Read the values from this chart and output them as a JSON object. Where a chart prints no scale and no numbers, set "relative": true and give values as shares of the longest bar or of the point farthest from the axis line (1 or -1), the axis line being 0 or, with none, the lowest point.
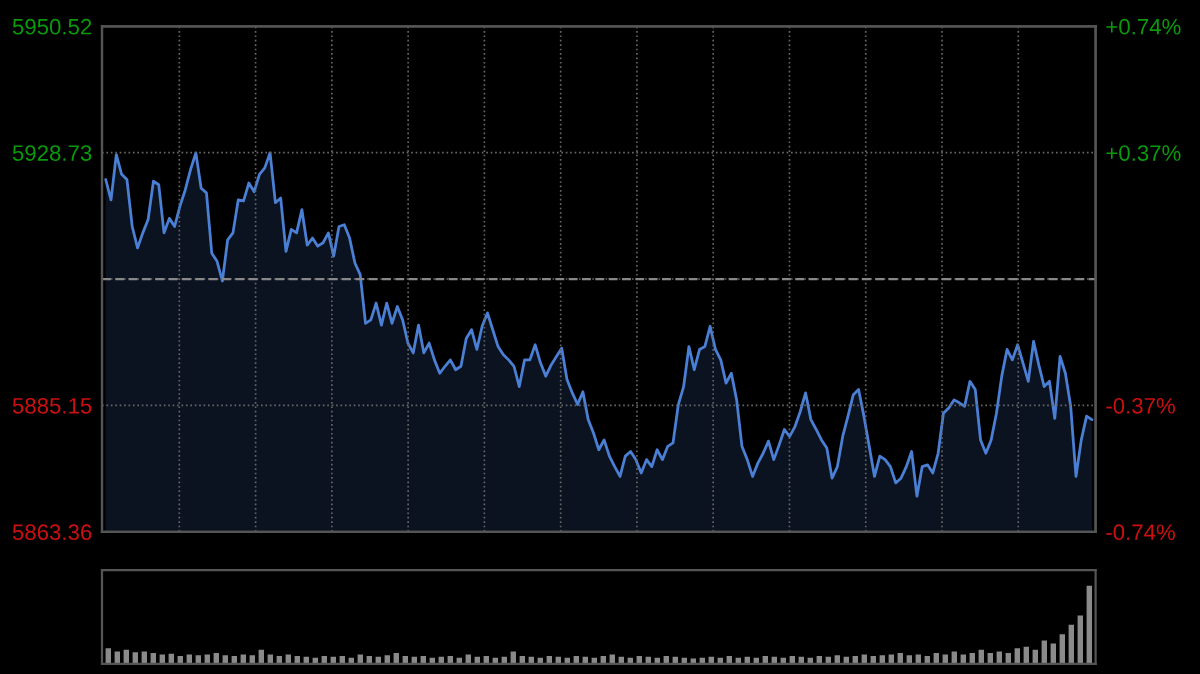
{
  "chart_data": [
    {
      "type": "area",
      "categories": [
        null,
        null,
        null,
        null,
        null,
        null,
        null,
        null,
        null,
        null,
        null,
        null,
        null,
        null,
        null,
        null,
        null,
        null,
        null,
        null,
        null,
        null,
        null,
        null,
        null,
        null,
        null,
        null,
        null,
        null,
        null,
        null,
        null,
        null,
        null,
        null,
        null,
        null,
        null,
        null,
        null,
        null,
        null,
        null,
        null,
        null,
        null,
        null,
        null,
        null,
        null,
        null,
        null,
        null,
        null,
        null,
        null,
        null,
        null,
        null,
        null,
        null,
        null,
        null,
        null,
        null,
        null,
        null,
        null,
        null,
        null,
        null,
        null,
        null,
        null,
        null,
        null,
        null,
        null,
        null,
        null,
        null,
        null,
        null,
        null,
        null,
        null,
        null,
        null,
        null,
        null,
        null,
        null,
        null,
        null,
        null,
        null,
        null,
        null,
        null,
        null,
        null,
        null,
        null,
        null,
        null,
        null,
        null,
        null,
        null,
        null,
        null,
        null,
        null,
        null,
        null,
        null,
        null,
        null,
        null,
        null,
        null,
        null,
        null,
        null,
        null,
        null,
        null,
        null,
        null,
        null,
        null,
        null,
        null,
        null,
        null,
        null,
        null,
        null,
        null,
        null,
        null,
        null,
        null,
        null,
        null,
        null,
        null,
        null,
        null,
        null,
        null,
        null,
        null,
        null,
        null,
        null,
        null,
        null,
        null,
        null,
        null,
        null,
        null,
        null,
        null,
        null,
        null,
        null,
        null,
        null,
        null,
        null,
        null,
        null,
        null,
        null,
        null,
        null,
        null,
        null,
        null,
        null,
        null,
        null,
        null,
        null
      ],
      "series": [
        {
          "color": "#4a7fd4",
          "values": [
            5924.1,
            5920.6,
            5928.4,
            5925.0,
            5924.1,
            5916.0,
            5912.3,
            5914.9,
            5917.2,
            5923.8,
            5923.2,
            5914.9,
            5917.4,
            5916.0,
            5919.5,
            5922.3,
            5925.8,
            5928.7,
            5922.6,
            5921.8,
            5911.4,
            5910.0,
            5906.6,
            5913.7,
            5914.9,
            5920.6,
            5920.4,
            5923.5,
            5922.0,
            5925.0,
            5926.1,
            5928.7,
            5920.1,
            5920.9,
            5911.7,
            5915.5,
            5914.9,
            5918.9,
            5912.8,
            5914.0,
            5912.6,
            5913.2,
            5914.9,
            5910.9,
            5916.0,
            5916.3,
            5914.0,
            5909.7,
            5907.7,
            5899.3,
            5899.9,
            5902.8,
            5899.0,
            5902.8,
            5899.3,
            5902.2,
            5899.9,
            5895.9,
            5894.2,
            5899.0,
            5894.2,
            5895.9,
            5893.0,
            5890.7,
            5891.9,
            5893.0,
            5891.3,
            5891.9,
            5896.7,
            5898.2,
            5894.8,
            5898.8,
            5901.1,
            5898.2,
            5895.3,
            5893.9,
            5893.0,
            5891.9,
            5888.4,
            5893.0,
            5893.0,
            5895.6,
            5892.5,
            5890.2,
            5892.1,
            5893.6,
            5895.0,
            5889.6,
            5887.3,
            5885.3,
            5887.5,
            5882.7,
            5880.4,
            5877.5,
            5879.2,
            5876.4,
            5874.6,
            5872.9,
            5876.4,
            5877.2,
            5875.8,
            5873.5,
            5875.8,
            5874.6,
            5877.5,
            5875.8,
            5878.1,
            5878.7,
            5885.3,
            5888.4,
            5895.3,
            5891.3,
            5894.8,
            5895.3,
            5898.8,
            5894.8,
            5893.0,
            5889.0,
            5890.7,
            5886.1,
            5878.1,
            5875.8,
            5872.9,
            5875.2,
            5876.9,
            5879.0,
            5875.8,
            5878.3,
            5881.0,
            5879.8,
            5881.5,
            5884.1,
            5887.3,
            5882.7,
            5881.0,
            5879.2,
            5877.8,
            5872.6,
            5874.6,
            5879.8,
            5883.3,
            5887.0,
            5887.9,
            5883.3,
            5878.1,
            5872.9,
            5876.4,
            5875.8,
            5874.6,
            5871.8,
            5872.6,
            5874.6,
            5877.2,
            5869.5,
            5874.6,
            5874.9,
            5873.5,
            5876.9,
            5883.8,
            5884.7,
            5886.1,
            5885.6,
            5885.0,
            5889.3,
            5887.9,
            5879.2,
            5876.9,
            5879.2,
            5883.8,
            5890.2,
            5894.8,
            5893.0,
            5895.6,
            5892.5,
            5889.3,
            5896.2,
            5892.1,
            5888.4,
            5889.3,
            5882.9,
            5893.6,
            5890.7,
            5885.0,
            5872.9,
            5879.2,
            5883.3,
            5882.7
          ]
        }
      ],
      "ylim": [
        5863.36,
        5950.52
      ],
      "yticks": [
        5863.36,
        5885.15,
        {
          "value": 5906.94,
          "label": null
        },
        5928.73,
        5950.52
      ],
      "y2lim": [
        -0.74,
        0.74
      ],
      "y2ticks": [
        {
          "value": -0.74,
          "label": "-0.74%"
        },
        {
          "value": -0.37,
          "label": "-0.37%"
        },
        {
          "value": 0,
          "label": null
        },
        {
          "value": 0.37,
          "label": "+0.37%"
        },
        {
          "value": 0.74,
          "label": "+0.74%"
        }
      ],
      "ref_lines": [
        {
          "axis": "y",
          "value": 5906.94,
          "line_style": "dashed",
          "color": "#888888"
        }
      ],
      "grid": true,
      "tick_labels": "y"
    },
    {
      "type": "bar",
      "relative": true,
      "color": "#8a8a8a",
      "categories": [
        null,
        null,
        null,
        null,
        null,
        null,
        null,
        null,
        null,
        null,
        null,
        null,
        null,
        null,
        null,
        null,
        null,
        null,
        null,
        null,
        null,
        null,
        null,
        null,
        null,
        null,
        null,
        null,
        null,
        null,
        null,
        null,
        null,
        null,
        null,
        null,
        null,
        null,
        null,
        null,
        null,
        null,
        null,
        null,
        null,
        null,
        null,
        null,
        null,
        null,
        null,
        null,
        null,
        null,
        null,
        null,
        null,
        null,
        null,
        null,
        null,
        null,
        null,
        null,
        null,
        null,
        null,
        null,
        null,
        null,
        null,
        null,
        null,
        null,
        null,
        null,
        null,
        null,
        null,
        null,
        null,
        null,
        null,
        null,
        null,
        null,
        null,
        null,
        null,
        null,
        null,
        null,
        null,
        null,
        null,
        null,
        null,
        null,
        null,
        null,
        null,
        null,
        null,
        null,
        null,
        null,
        null,
        null,
        null,
        null
      ],
      "values": [
        0.2,
        0.16,
        0.18,
        0.15,
        0.16,
        0.14,
        0.12,
        0.13,
        0.1,
        0.12,
        0.11,
        0.12,
        0.14,
        0.11,
        0.1,
        0.12,
        0.11,
        0.18,
        0.12,
        0.1,
        0.12,
        0.1,
        0.09,
        0.08,
        0.1,
        0.09,
        0.1,
        0.08,
        0.12,
        0.1,
        0.09,
        0.11,
        0.14,
        0.1,
        0.09,
        0.1,
        0.08,
        0.09,
        0.1,
        0.08,
        0.12,
        0.09,
        0.1,
        0.08,
        0.09,
        0.16,
        0.1,
        0.09,
        0.08,
        0.1,
        0.09,
        0.08,
        0.1,
        0.09,
        0.08,
        0.1,
        0.12,
        0.09,
        0.08,
        0.1,
        0.09,
        0.08,
        0.1,
        0.09,
        0.08,
        0.07,
        0.08,
        0.09,
        0.08,
        0.1,
        0.08,
        0.09,
        0.08,
        0.1,
        0.09,
        0.08,
        0.1,
        0.09,
        0.08,
        0.1,
        0.09,
        0.11,
        0.09,
        0.1,
        0.12,
        0.1,
        0.11,
        0.12,
        0.14,
        0.11,
        0.12,
        0.1,
        0.14,
        0.12,
        0.16,
        0.12,
        0.14,
        0.18,
        0.14,
        0.16,
        0.14,
        0.2,
        0.22,
        0.18,
        0.3,
        0.26,
        0.38,
        0.5,
        0.62,
        1
      ]
    }
  ]
}
